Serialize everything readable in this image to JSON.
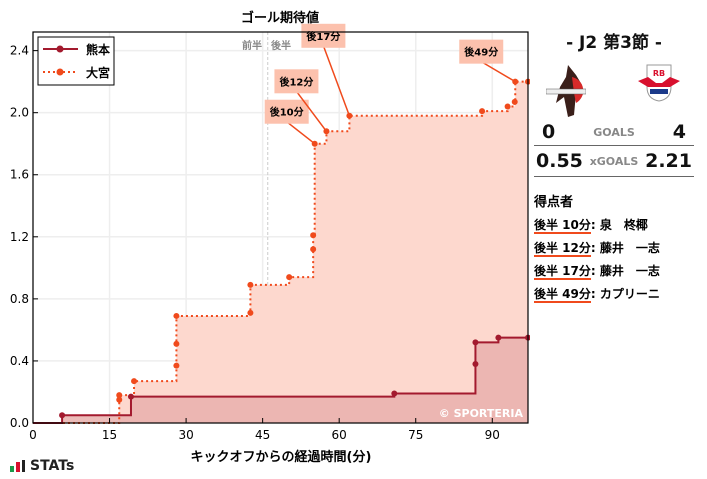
{
  "chart_data": {
    "type": "line",
    "title": "ゴール期待値",
    "xlabel": "キックオフからの経過時間(分)",
    "ylabel": "",
    "xlim": [
      0,
      97
    ],
    "ylim": [
      0,
      2.52
    ],
    "xticks": [
      0,
      15,
      30,
      45,
      60,
      75,
      90
    ],
    "yticks": [
      0.0,
      0.4,
      0.8,
      1.2,
      1.6,
      2.0,
      2.4
    ],
    "ytick_labels": [
      "0.0",
      "0.4",
      "0.8",
      "1.2",
      "1.6",
      "2.0",
      "2.4"
    ],
    "grid": true,
    "halftime_marker": {
      "x": 46,
      "labels": [
        "前半",
        "後半"
      ]
    },
    "legend_position": "top-left",
    "series": [
      {
        "name": "熊本",
        "color": "#a31a2e",
        "fill": "#e9b0ad",
        "style": "solid",
        "x": [
          5.7,
          19.2,
          70.8,
          86.7,
          86.7,
          91.2,
          97
        ],
        "y": [
          0.05,
          0.17,
          0.19,
          0.38,
          0.52,
          0.55,
          0.55
        ]
      },
      {
        "name": "大宮",
        "color": "#f04a1c",
        "fill": "#fdd8ce",
        "style": "dotted",
        "x": [
          16.9,
          16.9,
          19.8,
          28.1,
          28.1,
          28.1,
          42.6,
          42.6,
          50.2,
          54.9,
          54.9,
          55.2,
          57.5,
          62,
          88,
          93,
          94.4,
          94.5,
          97
        ],
        "y": [
          0.15,
          0.18,
          0.27,
          0.37,
          0.51,
          0.69,
          0.71,
          0.89,
          0.94,
          1.12,
          1.21,
          1.8,
          1.88,
          1.98,
          2.01,
          2.04,
          2.07,
          2.2,
          2.2
        ]
      }
    ],
    "annotations": [
      {
        "label": "後10分",
        "x": 55.2,
        "y": 1.8
      },
      {
        "label": "後12分",
        "x": 57.5,
        "y": 1.88
      },
      {
        "label": "後17分",
        "x": 62,
        "y": 1.98
      },
      {
        "label": "後49分",
        "x": 94.5,
        "y": 2.2
      }
    ],
    "watermark": "© SPORTERIA"
  },
  "match": {
    "round": "- J2 第3節 -",
    "home_goals": "0",
    "away_goals": "4",
    "goals_label": "GOALS",
    "home_xg": "0.55",
    "away_xg": "2.21",
    "xg_label": "xGOALS",
    "scorers_title": "得点者",
    "scorers": [
      {
        "time": "後半 10分",
        "name": "泉　柊椰"
      },
      {
        "time": "後半 12分",
        "name": "藤井　一志"
      },
      {
        "time": "後半 17分",
        "name": "藤井　一志"
      },
      {
        "time": "後半 49分",
        "name": "カプリーニ"
      }
    ]
  },
  "brand": "STATs"
}
